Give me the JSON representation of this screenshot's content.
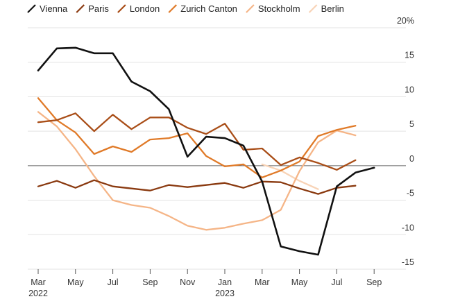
{
  "chart_data": {
    "type": "line",
    "title": "",
    "xlabel": "",
    "ylabel": "",
    "ylim": [
      -15,
      20
    ],
    "x_tick_labels": [
      {
        "label": "Mar",
        "sub": "2022",
        "index": 0
      },
      {
        "label": "May",
        "sub": "",
        "index": 2
      },
      {
        "label": "Jul",
        "sub": "",
        "index": 4
      },
      {
        "label": "Sep",
        "sub": "",
        "index": 6
      },
      {
        "label": "Nov",
        "sub": "",
        "index": 8
      },
      {
        "label": "Jan",
        "sub": "2023",
        "index": 10
      },
      {
        "label": "Mar",
        "sub": "",
        "index": 12
      },
      {
        "label": "May",
        "sub": "",
        "index": 14
      },
      {
        "label": "Jul",
        "sub": "",
        "index": 16
      },
      {
        "label": "Sep",
        "sub": "",
        "index": 18
      }
    ],
    "y_ticks": [
      {
        "value": 20,
        "label": "20%"
      },
      {
        "value": 15,
        "label": "15"
      },
      {
        "value": 10,
        "label": "10"
      },
      {
        "value": 5,
        "label": "5"
      },
      {
        "value": 0,
        "label": "0"
      },
      {
        "value": -5,
        "label": "-5"
      },
      {
        "value": -10,
        "label": "-10"
      },
      {
        "value": -15,
        "label": "-15"
      }
    ],
    "series": [
      {
        "name": "Vienna",
        "color": "#111111",
        "values": [
          13.8,
          17.0,
          17.1,
          16.3,
          16.3,
          12.2,
          10.8,
          8.2,
          1.3,
          4.2,
          4.0,
          2.9,
          -2.3,
          -11.7,
          -12.4,
          -12.9,
          -3.0,
          -1.0,
          -0.3
        ]
      },
      {
        "name": "Paris",
        "color": "#8a3a10",
        "values": [
          -3.0,
          -2.2,
          -3.2,
          -2.1,
          -3.0,
          -3.3,
          -3.6,
          -2.8,
          -3.1,
          -2.8,
          -2.5,
          -3.2,
          -2.3,
          -2.4,
          -3.3,
          -4.1,
          -3.2,
          -2.9
        ]
      },
      {
        "name": "London",
        "color": "#a94e18",
        "values": [
          6.3,
          6.6,
          7.6,
          5.0,
          7.4,
          5.3,
          7.0,
          7.0,
          5.5,
          4.6,
          6.1,
          2.3,
          2.5,
          0.1,
          1.2,
          0.4,
          -0.6,
          0.8
        ]
      },
      {
        "name": "Zurich Canton",
        "color": "#e07a28",
        "values": [
          9.8,
          6.6,
          4.8,
          1.7,
          2.8,
          2.0,
          3.8,
          4.0,
          4.7,
          1.4,
          -0.1,
          0.2,
          -1.7,
          -0.7,
          0.6,
          4.3,
          5.2,
          5.8
        ]
      },
      {
        "name": "Stockholm",
        "color": "#f5b587",
        "values": [
          7.8,
          5.7,
          2.4,
          -1.5,
          -5.0,
          -5.7,
          -6.1,
          -7.3,
          -8.7,
          -9.3,
          -9.0,
          -8.4,
          -7.9,
          -6.4,
          -0.8,
          3.4,
          5.1,
          4.4
        ]
      },
      {
        "name": "Berlin",
        "color": "#f8d3b6",
        "values": [
          null,
          null,
          null,
          null,
          null,
          null,
          null,
          null,
          null,
          null,
          null,
          null,
          0.2,
          -0.7,
          -2.2,
          -3.4
        ]
      }
    ]
  }
}
